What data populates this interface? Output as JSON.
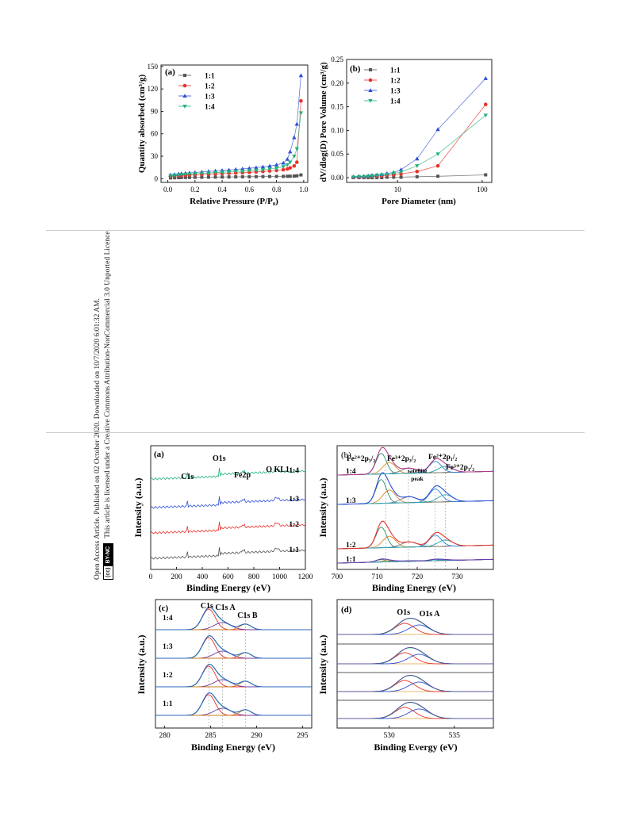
{
  "sidebar": {
    "line1": "Open Access Article. Published on 02 October 2020. Downloaded on 10/7/2020 6:01:32 AM.",
    "line2": "This article is licensed under a Creative Commons Attribution-NonCommercial 3.0 Unported Licence.",
    "badge_left": "(cc)",
    "badge_right": "BY-NC"
  },
  "colors": {
    "s11": "#555555",
    "s12": "#e8312a",
    "s13": "#2d4fd6",
    "s14": "#24b27a"
  },
  "chart_data": [
    {
      "type": "scatter",
      "panel": "(a)",
      "xlabel": "Relative Pressure (P/P₀)",
      "ylabel": "Quantity absorbed (cm³/g)",
      "xlim": [
        -0.05,
        1.03
      ],
      "ylim": [
        -5,
        152
      ],
      "xticks": [
        "0.0",
        "0.2",
        "0.4",
        "0.6",
        "0.8",
        "1.0"
      ],
      "yticks": [
        "0",
        "30",
        "60",
        "90",
        "120",
        "150"
      ],
      "legend_position": "top-left",
      "series": [
        {
          "name": "1:1",
          "x": [
            0.02,
            0.05,
            0.08,
            0.1,
            0.13,
            0.16,
            0.2,
            0.25,
            0.3,
            0.35,
            0.4,
            0.45,
            0.5,
            0.55,
            0.6,
            0.65,
            0.7,
            0.75,
            0.8,
            0.85,
            0.88,
            0.9,
            0.93,
            0.95,
            0.98
          ],
          "y": [
            1,
            1.2,
            1.4,
            1.5,
            1.6,
            1.7,
            1.8,
            1.9,
            2,
            2.1,
            2.2,
            2.3,
            2.4,
            2.5,
            2.6,
            2.7,
            2.8,
            2.9,
            3,
            3.1,
            3.2,
            3.3,
            3.5,
            3.8,
            5
          ]
        },
        {
          "name": "1:2",
          "x": [
            0.02,
            0.05,
            0.08,
            0.1,
            0.13,
            0.16,
            0.2,
            0.25,
            0.3,
            0.35,
            0.4,
            0.45,
            0.5,
            0.55,
            0.6,
            0.65,
            0.7,
            0.75,
            0.8,
            0.85,
            0.88,
            0.9,
            0.93,
            0.95,
            0.98
          ],
          "y": [
            3,
            3.5,
            4,
            4.3,
            4.6,
            4.9,
            5.2,
            5.6,
            6,
            6.4,
            6.8,
            7.2,
            7.6,
            8,
            8.5,
            9,
            9.6,
            10.3,
            11,
            12,
            13,
            14.5,
            17,
            22,
            104
          ]
        },
        {
          "name": "1:3",
          "x": [
            0.02,
            0.05,
            0.08,
            0.1,
            0.13,
            0.16,
            0.2,
            0.25,
            0.3,
            0.35,
            0.4,
            0.45,
            0.5,
            0.55,
            0.6,
            0.65,
            0.7,
            0.75,
            0.8,
            0.85,
            0.88,
            0.9,
            0.93,
            0.95,
            0.98
          ],
          "y": [
            5,
            5.7,
            6.3,
            6.8,
            7.3,
            7.8,
            8.3,
            9,
            9.7,
            10.4,
            11,
            11.7,
            12.4,
            13.1,
            13.9,
            14.8,
            15.8,
            17,
            18.5,
            21,
            26,
            36,
            55,
            73,
            138
          ]
        },
        {
          "name": "1:4",
          "x": [
            0.02,
            0.05,
            0.08,
            0.1,
            0.13,
            0.16,
            0.2,
            0.25,
            0.3,
            0.35,
            0.4,
            0.45,
            0.5,
            0.55,
            0.6,
            0.65,
            0.7,
            0.75,
            0.8,
            0.85,
            0.88,
            0.9,
            0.93,
            0.95,
            0.98
          ],
          "y": [
            4,
            4.5,
            5,
            5.4,
            5.8,
            6.2,
            6.6,
            7.1,
            7.6,
            8.1,
            8.6,
            9.1,
            9.6,
            10.1,
            10.7,
            11.3,
            12,
            12.9,
            14,
            16,
            18.5,
            22,
            30,
            40,
            88
          ]
        }
      ]
    },
    {
      "type": "line",
      "panel": "(b)",
      "xlabel": "Pore Diameter (nm)",
      "ylabel": "dV/dlog(D) Pore Volume (cm³/g)",
      "xscale": "log",
      "xlim": [
        2.5,
        130
      ],
      "ylim": [
        -0.01,
        0.25
      ],
      "xticks": [
        "10",
        "100"
      ],
      "yticks": [
        "0.00",
        "0.05",
        "0.10",
        "0.15",
        "0.20",
        "0.25"
      ],
      "legend_position": "top-left",
      "series": [
        {
          "name": "1:1",
          "x": [
            3,
            3.5,
            4,
            4.5,
            5,
            5.7,
            6.5,
            7.5,
            9,
            11,
            17,
            30,
            110
          ],
          "y": [
            0,
            0,
            0,
            0,
            0,
            0,
            0,
            0.001,
            0.001,
            0.001,
            0.002,
            0.003,
            0.006
          ]
        },
        {
          "name": "1:2",
          "x": [
            3,
            3.5,
            4,
            4.5,
            5,
            5.7,
            6.5,
            7.5,
            9,
            11,
            17,
            30,
            110
          ],
          "y": [
            0.001,
            0.001,
            0.002,
            0.002,
            0.003,
            0.003,
            0.004,
            0.005,
            0.006,
            0.008,
            0.013,
            0.025,
            0.155
          ]
        },
        {
          "name": "1:3",
          "x": [
            3,
            3.5,
            4,
            4.5,
            5,
            5.7,
            6.5,
            7.5,
            9,
            11,
            17,
            30,
            110
          ],
          "y": [
            0.002,
            0.003,
            0.003,
            0.004,
            0.005,
            0.006,
            0.007,
            0.009,
            0.011,
            0.017,
            0.04,
            0.102,
            0.21
          ]
        },
        {
          "name": "1:4",
          "x": [
            3,
            3.5,
            4,
            4.5,
            5,
            5.7,
            6.5,
            7.5,
            9,
            11,
            17,
            30,
            110
          ],
          "y": [
            0.001,
            0.002,
            0.002,
            0.003,
            0.004,
            0.005,
            0.006,
            0.007,
            0.009,
            0.012,
            0.025,
            0.05,
            0.132
          ]
        }
      ]
    },
    {
      "type": "line",
      "panel": "(a)",
      "xlabel": "Binding Energy (eV)",
      "ylabel": "Intensity (a.u.)",
      "xlim": [
        0,
        1200
      ],
      "xticks": [
        "0",
        "200",
        "400",
        "600",
        "800",
        "1000",
        "1200"
      ],
      "annotations": [
        "C1s",
        "O1s",
        "Fe2p",
        "O KL1"
      ],
      "series": [
        {
          "name": "1:1",
          "offset": 0,
          "color": "#555555"
        },
        {
          "name": "1:2",
          "offset": 1,
          "color": "#e8312a"
        },
        {
          "name": "1:3",
          "offset": 2,
          "color": "#2d4fd6"
        },
        {
          "name": "1:4",
          "offset": 3,
          "color": "#24b27a"
        }
      ]
    },
    {
      "type": "line",
      "panel": "(b)",
      "xlabel": "Binding Energy (eV)",
      "ylabel": "Intensity (a.u.)",
      "xlim": [
        700,
        739
      ],
      "xticks": [
        "700",
        "710",
        "720",
        "730"
      ],
      "annotations": [
        "Fe²⁺2p₃/₂",
        "Fe³⁺2p₃/₂",
        "satellite",
        "peak",
        "Fe²⁺2p₁/₂",
        "Fe³⁺2p₁/₂"
      ],
      "series": [
        {
          "name": "1:1",
          "offset": 0
        },
        {
          "name": "1:2",
          "offset": 1
        },
        {
          "name": "1:3",
          "offset": 2
        },
        {
          "name": "1:4",
          "offset": 3
        }
      ]
    },
    {
      "type": "line",
      "panel": "(c)",
      "xlabel": "Binding Energy (eV)",
      "ylabel": "Intensity (a.u.)",
      "xlim": [
        279,
        296
      ],
      "xticks": [
        "280",
        "285",
        "290",
        "295"
      ],
      "annotations": [
        "C1s",
        "C1s A",
        "C1s B"
      ],
      "series": [
        {
          "name": "1:1",
          "offset": 0
        },
        {
          "name": "1:2",
          "offset": 1
        },
        {
          "name": "1:3",
          "offset": 2
        },
        {
          "name": "1:4",
          "offset": 3
        }
      ]
    },
    {
      "type": "line",
      "panel": "(d)",
      "xlabel": "Binding Evergy (eV)",
      "ylabel": "Intensity (a.u.)",
      "xlim": [
        526,
        538
      ],
      "xticks": [
        "530",
        "535"
      ],
      "annotations": [
        "O1s",
        "O1s A"
      ],
      "series": [
        {
          "offset": 0
        },
        {
          "offset": 1
        },
        {
          "offset": 2
        },
        {
          "offset": 3
        }
      ]
    }
  ]
}
